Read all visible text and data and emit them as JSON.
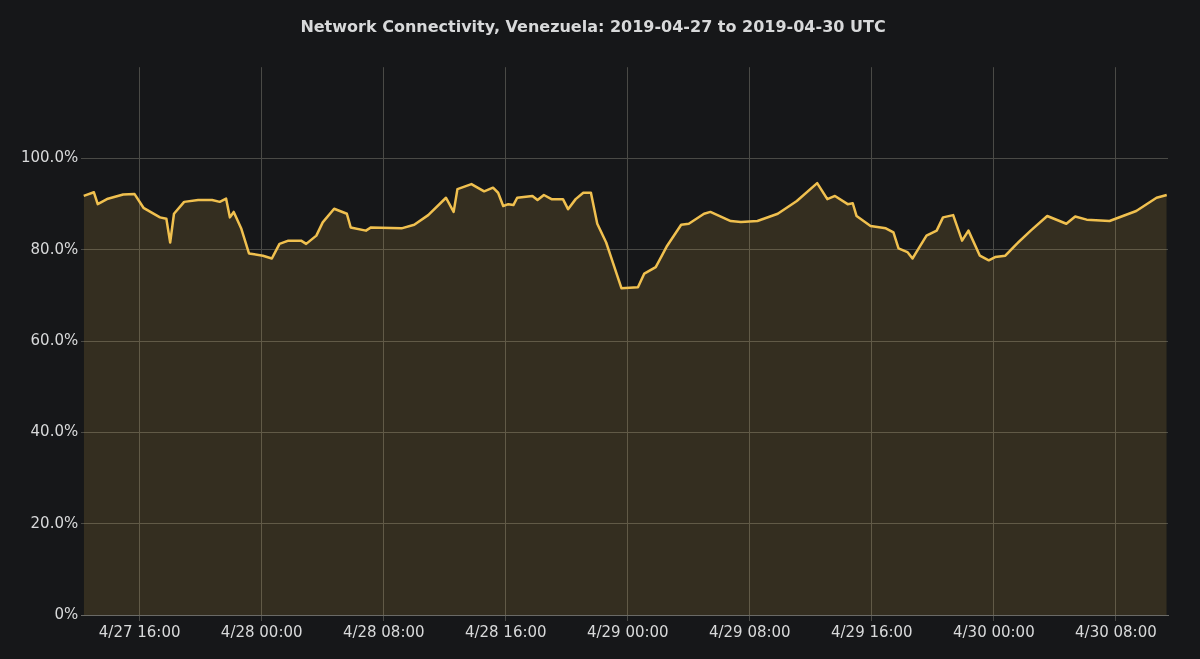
{
  "chart_data": {
    "type": "area",
    "title": "Network Connectivity, Venezuela: 2019-04-27 to 2019-04-30 UTC",
    "series": [
      {
        "color": "#f0c04f",
        "x": [
          "2019-04-27T12:20",
          "2019-04-27T13:00",
          "2019-04-27T13:15",
          "2019-04-27T13:55",
          "2019-04-27T14:55",
          "2019-04-27T15:40",
          "2019-04-27T16:15",
          "2019-04-27T17:20",
          "2019-04-27T17:45",
          "2019-04-27T18:00",
          "2019-04-27T18:15",
          "2019-04-27T18:55",
          "2019-04-27T19:50",
          "2019-04-27T20:45",
          "2019-04-27T21:15",
          "2019-04-27T21:40",
          "2019-04-27T21:55",
          "2019-04-27T22:10",
          "2019-04-27T22:40",
          "2019-04-27T23:10",
          "2019-04-28T00:05",
          "2019-04-28T00:40",
          "2019-04-28T01:10",
          "2019-04-28T01:45",
          "2019-04-28T02:35",
          "2019-04-28T02:55",
          "2019-04-28T03:35",
          "2019-04-28T04:00",
          "2019-04-28T04:45",
          "2019-04-28T05:35",
          "2019-04-28T05:50",
          "2019-04-28T06:50",
          "2019-04-28T07:10",
          "2019-04-28T09:10",
          "2019-04-28T10:00",
          "2019-04-28T10:55",
          "2019-04-28T12:05",
          "2019-04-28T12:35",
          "2019-04-28T12:50",
          "2019-04-28T13:45",
          "2019-04-28T14:35",
          "2019-04-28T15:10",
          "2019-04-28T15:30",
          "2019-04-28T15:50",
          "2019-04-28T16:10",
          "2019-04-28T16:30",
          "2019-04-28T16:45",
          "2019-04-28T17:45",
          "2019-04-28T18:05",
          "2019-04-28T18:30",
          "2019-04-28T19:00",
          "2019-04-28T19:45",
          "2019-04-28T20:05",
          "2019-04-28T20:35",
          "2019-04-28T21:05",
          "2019-04-28T21:35",
          "2019-04-28T22:00",
          "2019-04-28T22:35",
          "2019-04-28T23:35",
          "2019-04-29T00:40",
          "2019-04-29T01:05",
          "2019-04-29T01:50",
          "2019-04-29T02:35",
          "2019-04-29T03:30",
          "2019-04-29T04:00",
          "2019-04-29T05:00",
          "2019-04-29T05:25",
          "2019-04-29T06:45",
          "2019-04-29T07:25",
          "2019-04-29T08:30",
          "2019-04-29T09:50",
          "2019-04-29T11:05",
          "2019-04-29T12:25",
          "2019-04-29T13:05",
          "2019-04-29T13:35",
          "2019-04-29T14:25",
          "2019-04-29T14:45",
          "2019-04-29T15:00",
          "2019-04-29T15:55",
          "2019-04-29T16:55",
          "2019-04-29T17:25",
          "2019-04-29T17:45",
          "2019-04-29T18:20",
          "2019-04-29T18:40",
          "2019-04-29T19:35",
          "2019-04-29T20:15",
          "2019-04-29T20:40",
          "2019-04-29T21:20",
          "2019-04-29T21:55",
          "2019-04-29T22:20",
          "2019-04-29T23:05",
          "2019-04-29T23:40",
          "2019-04-30T00:05",
          "2019-04-30T00:45",
          "2019-04-30T01:30",
          "2019-04-30T02:25",
          "2019-04-30T03:30",
          "2019-04-30T04:45",
          "2019-04-30T05:20",
          "2019-04-30T06:05",
          "2019-04-30T07:35",
          "2019-04-30T09:20",
          "2019-04-30T10:40",
          "2019-04-30T11:20"
        ],
        "values": [
          91.8,
          92.6,
          90.0,
          91.2,
          92.1,
          92.2,
          89.2,
          87.1,
          86.8,
          81.6,
          87.9,
          90.5,
          90.9,
          90.9,
          90.5,
          91.2,
          87.1,
          88.3,
          84.6,
          79.2,
          78.7,
          78.1,
          81.3,
          82.0,
          82.0,
          81.3,
          83.1,
          86.0,
          89.0,
          87.9,
          84.9,
          84.2,
          84.9,
          84.7,
          85.5,
          87.6,
          91.4,
          88.3,
          93.3,
          94.4,
          92.8,
          93.6,
          92.5,
          89.6,
          90.0,
          89.8,
          91.4,
          91.8,
          90.9,
          92.0,
          91.1,
          91.1,
          88.9,
          91.1,
          92.5,
          92.5,
          85.7,
          81.6,
          71.6,
          71.8,
          74.8,
          76.2,
          80.9,
          85.5,
          85.7,
          87.9,
          88.3,
          86.3,
          86.1,
          86.3,
          87.9,
          90.7,
          94.6,
          91.1,
          91.8,
          90.0,
          90.2,
          87.4,
          85.2,
          84.7,
          83.8,
          80.3,
          79.5,
          78.1,
          83.1,
          84.2,
          87.1,
          87.6,
          82.0,
          84.2,
          78.7,
          77.7,
          78.4,
          78.7,
          81.3,
          84.2,
          87.4,
          85.7,
          87.3,
          86.6,
          86.3,
          88.5,
          91.4,
          92.0
        ]
      }
    ],
    "xlim": [
      "2019-04-27T12:10",
      "2019-04-30T11:25"
    ],
    "xticks": [
      {
        "value": "2019-04-27T16:00",
        "label": "4/27 16:00"
      },
      {
        "value": "2019-04-28T00:00",
        "label": "4/28 00:00"
      },
      {
        "value": "2019-04-28T08:00",
        "label": "4/28 08:00"
      },
      {
        "value": "2019-04-28T16:00",
        "label": "4/28 16:00"
      },
      {
        "value": "2019-04-29T00:00",
        "label": "4/29 00:00"
      },
      {
        "value": "2019-04-29T08:00",
        "label": "4/29 08:00"
      },
      {
        "value": "2019-04-29T16:00",
        "label": "4/29 16:00"
      },
      {
        "value": "2019-04-30T00:00",
        "label": "4/30 00:00"
      },
      {
        "value": "2019-04-30T08:00",
        "label": "4/30 08:00"
      }
    ],
    "ylim": [
      0,
      120
    ],
    "yticks": [
      {
        "value": 0,
        "label": "0%"
      },
      {
        "value": 20,
        "label": "20.0%"
      },
      {
        "value": 40,
        "label": "40.0%"
      },
      {
        "value": 60,
        "label": "60.0%"
      },
      {
        "value": 80,
        "label": "80.0%"
      },
      {
        "value": 100,
        "label": "100.0%"
      }
    ],
    "grid": true,
    "legend": false,
    "marker": "none",
    "line_style": "solid"
  }
}
